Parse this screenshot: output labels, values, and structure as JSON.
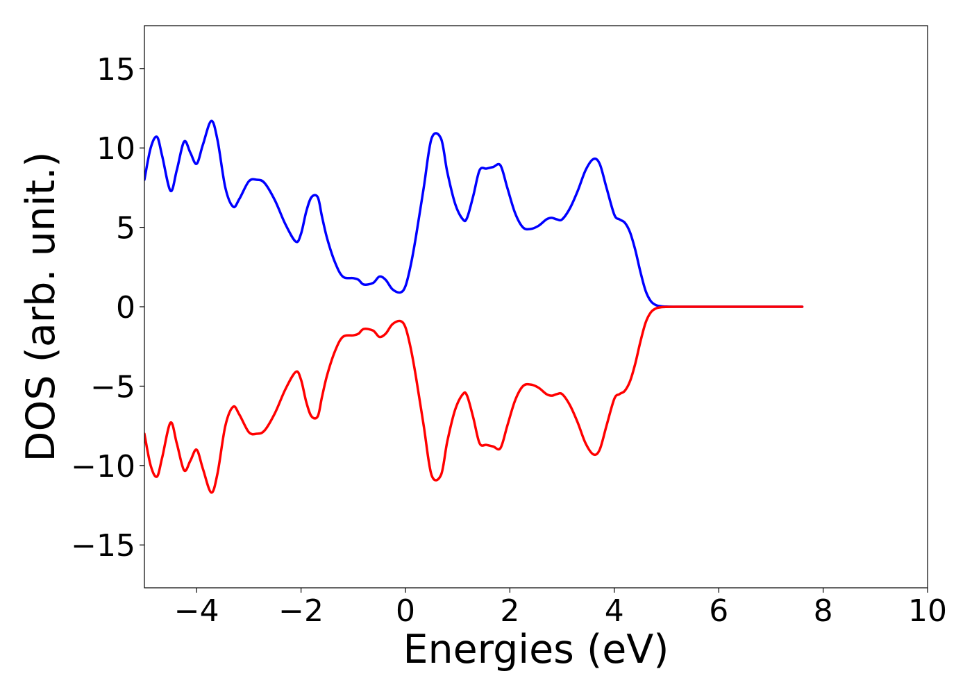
{
  "chart_data": {
    "type": "line",
    "title": "",
    "xlabel": "Energies (eV)",
    "ylabel": "DOS (arb. unit.)",
    "xlim": [
      -5,
      10
    ],
    "ylim": [
      -17.7,
      17.7
    ],
    "grid": false,
    "legend": "none",
    "x_ticks": [
      -4,
      -2,
      0,
      2,
      4,
      6,
      8,
      10
    ],
    "x_tick_labels": [
      "−4",
      "−2",
      "0",
      "2",
      "4",
      "6",
      "8",
      "10"
    ],
    "y_ticks": [
      15,
      10,
      5,
      0,
      -5,
      -10,
      -15
    ],
    "y_tick_labels": [
      "15",
      "10",
      "5",
      "0",
      "−5",
      "−10",
      "−15"
    ],
    "colors": {
      "spin_up": "#0000ff",
      "spin_down": "#ff0000"
    },
    "spin_up": {
      "x": [
        -5.0,
        -4.88,
        -4.76,
        -4.66,
        -4.5,
        -4.38,
        -4.24,
        -4.12,
        -4.0,
        -3.88,
        -3.72,
        -3.6,
        -3.45,
        -3.3,
        -3.18,
        -3.0,
        -2.85,
        -2.7,
        -2.5,
        -2.3,
        -2.1,
        -2.0,
        -1.9,
        -1.8,
        -1.68,
        -1.6,
        -1.5,
        -1.35,
        -1.2,
        -1.0,
        -0.9,
        -0.8,
        -0.62,
        -0.5,
        -0.38,
        -0.25,
        -0.1,
        0.0,
        0.1,
        0.2,
        0.35,
        0.5,
        0.68,
        0.8,
        0.95,
        1.1,
        1.18,
        1.3,
        1.42,
        1.55,
        1.68,
        1.82,
        1.95,
        2.1,
        2.25,
        2.4,
        2.55,
        2.7,
        2.8,
        2.9,
        3.0,
        3.15,
        3.3,
        3.45,
        3.6,
        3.72,
        3.85,
        4.0,
        4.1,
        4.2,
        4.3,
        4.4,
        4.5,
        4.6,
        4.7,
        4.8,
        4.9,
        5.0,
        5.2,
        5.5,
        6.0,
        7.0,
        7.6
      ],
      "y": [
        8.0,
        10.0,
        10.7,
        9.5,
        7.3,
        8.6,
        10.4,
        9.7,
        9.0,
        10.2,
        11.7,
        10.5,
        7.5,
        6.3,
        6.8,
        7.9,
        8.0,
        7.8,
        6.7,
        5.2,
        4.1,
        4.6,
        6.0,
        6.9,
        6.9,
        5.7,
        4.3,
        2.8,
        1.9,
        1.8,
        1.7,
        1.4,
        1.5,
        1.9,
        1.7,
        1.1,
        0.9,
        1.3,
        2.6,
        4.4,
        7.5,
        10.6,
        10.6,
        8.5,
        6.5,
        5.5,
        5.6,
        7.0,
        8.6,
        8.7,
        8.8,
        8.9,
        7.5,
        5.9,
        5.0,
        4.9,
        5.1,
        5.5,
        5.6,
        5.5,
        5.5,
        6.2,
        7.3,
        8.6,
        9.3,
        9.0,
        7.5,
        5.8,
        5.5,
        5.3,
        4.7,
        3.6,
        2.2,
        1.0,
        0.35,
        0.1,
        0.03,
        0.01,
        0.0,
        0.0,
        0.0,
        0.0,
        0.0
      ]
    },
    "spin_down": {
      "x": [
        -5.0,
        -4.88,
        -4.76,
        -4.66,
        -4.5,
        -4.38,
        -4.24,
        -4.12,
        -4.0,
        -3.88,
        -3.72,
        -3.6,
        -3.45,
        -3.3,
        -3.18,
        -3.0,
        -2.85,
        -2.7,
        -2.5,
        -2.3,
        -2.1,
        -2.0,
        -1.9,
        -1.8,
        -1.68,
        -1.6,
        -1.5,
        -1.35,
        -1.2,
        -1.0,
        -0.9,
        -0.8,
        -0.62,
        -0.5,
        -0.38,
        -0.25,
        -0.1,
        0.0,
        0.1,
        0.2,
        0.35,
        0.5,
        0.68,
        0.8,
        0.95,
        1.1,
        1.18,
        1.3,
        1.42,
        1.55,
        1.68,
        1.82,
        1.95,
        2.1,
        2.25,
        2.4,
        2.55,
        2.7,
        2.8,
        2.9,
        3.0,
        3.15,
        3.3,
        3.45,
        3.6,
        3.72,
        3.85,
        4.0,
        4.1,
        4.2,
        4.3,
        4.4,
        4.5,
        4.6,
        4.7,
        4.8,
        4.9,
        5.0,
        5.2,
        5.5,
        6.0,
        7.0,
        7.6
      ],
      "y": [
        -8.0,
        -10.0,
        -10.7,
        -9.5,
        -7.3,
        -8.6,
        -10.3,
        -9.7,
        -9.0,
        -10.2,
        -11.7,
        -10.5,
        -7.5,
        -6.3,
        -6.8,
        -7.9,
        -8.0,
        -7.8,
        -6.7,
        -5.2,
        -4.1,
        -4.6,
        -6.0,
        -6.9,
        -6.9,
        -5.7,
        -4.3,
        -2.8,
        -1.9,
        -1.8,
        -1.7,
        -1.4,
        -1.5,
        -1.9,
        -1.7,
        -1.1,
        -0.9,
        -1.3,
        -2.6,
        -4.4,
        -7.5,
        -10.6,
        -10.6,
        -8.5,
        -6.5,
        -5.5,
        -5.6,
        -7.0,
        -8.6,
        -8.7,
        -8.8,
        -8.9,
        -7.5,
        -5.9,
        -5.0,
        -4.9,
        -5.1,
        -5.5,
        -5.6,
        -5.5,
        -5.5,
        -6.2,
        -7.3,
        -8.6,
        -9.3,
        -9.0,
        -7.5,
        -5.8,
        -5.5,
        -5.3,
        -4.7,
        -3.6,
        -2.2,
        -1.0,
        -0.35,
        -0.1,
        -0.03,
        -0.01,
        0.0,
        0.0,
        0.0,
        0.0,
        0.0
      ]
    }
  }
}
